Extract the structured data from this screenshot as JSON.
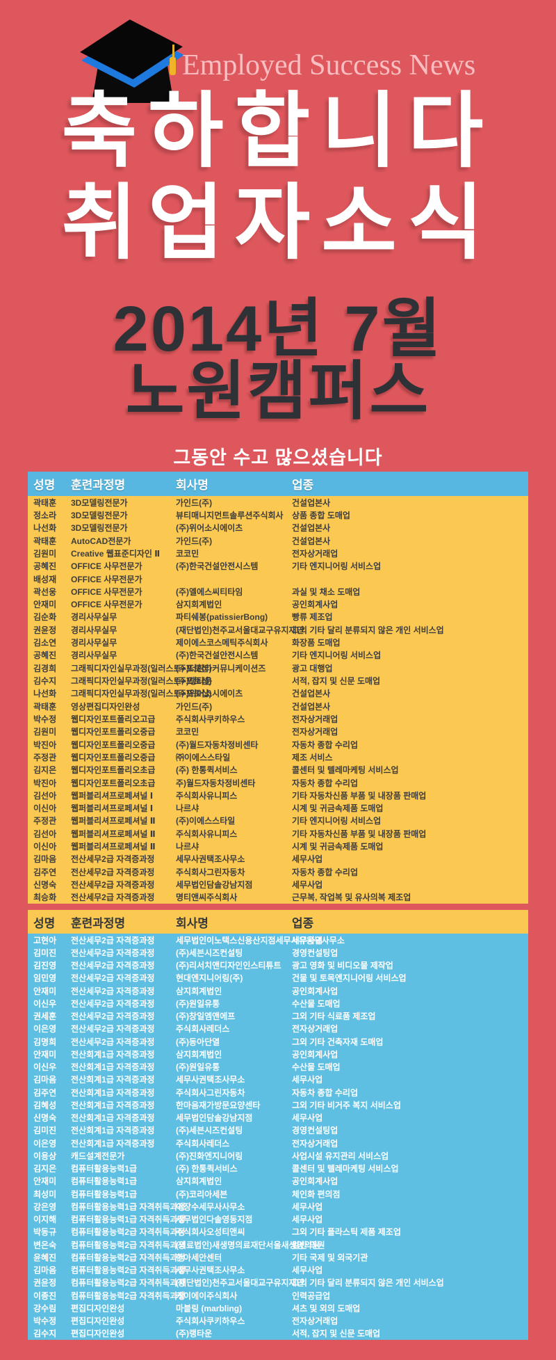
{
  "banner": {
    "brand": "Employed Success News"
  },
  "header": {
    "title_line1": "축하합니다",
    "title_line2": "취업자소식",
    "subtitle_line1": "2014년 7월",
    "subtitle_line2": "노원캠퍼스",
    "message": "그동안 수고 많으셨습니다"
  },
  "icons": {
    "graduation_cap": "graduation-cap-icon"
  },
  "colors": {
    "background": "#de575c",
    "table1_header_bg": "#57b7e0",
    "table1_body_bg": "#fbc851",
    "table2_header_bg": "#fbc851",
    "table2_body_bg": "#5fbfe3",
    "title_white": "#ffffff",
    "title_dark": "#2e3236",
    "cell_text_dark": "#3d3d3d",
    "cap_band_blue": "#1f7ae0",
    "tassel_gold": "#f0b428"
  },
  "table1": {
    "columns": [
      "성명",
      "훈련과정명",
      "회사명",
      "업종"
    ],
    "rows": [
      [
        "곽태훈",
        "3D모델링전문가",
        "가인드(주)",
        "건설업본사"
      ],
      [
        "정소라",
        "3D모델링전문가",
        "뷰티매니지먼트솔루션주식회사",
        "상품 종합 도매업"
      ],
      [
        "나선화",
        "3D모델링전문가",
        "(주)위어소시에이츠",
        "건설업본사"
      ],
      [
        "곽태훈",
        "AutoCAD전문가",
        "가인드(주)",
        "건설업본사"
      ],
      [
        "김원미",
        "Creative 웹표준디자인 Ⅱ",
        "코코민",
        "전자상거래업"
      ],
      [
        "공혜진",
        "OFFICE 사무전문가",
        "(주)한국건설안전시스템",
        "기타 엔지니어링 서비스업"
      ],
      [
        "배성재",
        "OFFICE 사무전문가",
        "",
        ""
      ],
      [
        "곽선웅",
        "OFFICE 사무전문가",
        "(주)엘에스씨티타임",
        "과실 및 채소 도매업"
      ],
      [
        "안재미",
        "OFFICE 사무전문가",
        "삼지회계법인",
        "공인회계사업"
      ],
      [
        "김순화",
        "경리사무실무",
        "파티쉐봉(patissierBong)",
        "빵류 제조업"
      ],
      [
        "권윤정",
        "경리사무실무",
        "(재단법인)천주교서울대교구유지재단",
        "그외 기타 달리 분류되지 않은 개인 서비스업"
      ],
      [
        "김소연",
        "경리사무실무",
        "제이에스코스메틱주식회사",
        "화장품 도매업"
      ],
      [
        "공혜진",
        "경리사무실무",
        "(주)한국건설안전시스템",
        "기타 엔지니어링 서비스업"
      ],
      [
        "김경희",
        "그래픽디자인실무과정(일러스트+포토샵)",
        "(주)더환타커뮤니케이션즈",
        "광고 대행업"
      ],
      [
        "김수지",
        "그래픽디자인실무과정(일러스트+포토샵)",
        "(주)랭타운",
        "서적, 잡지 및 신문 도매업"
      ],
      [
        "나선화",
        "그래픽디자인실무과정(일러스트+포토샵)",
        "(주)위어소시에이츠",
        "건설업본사"
      ],
      [
        "곽태훈",
        "영상편집디자인완성",
        "가인드(주)",
        "건설업본사"
      ],
      [
        "박수정",
        "웹디자인포트폴리오고급",
        "주식회사쿠키하우스",
        "전자상거래업"
      ],
      [
        "김원미",
        "웹디자인포트폴리오중급",
        "코코민",
        "전자상거래업"
      ],
      [
        "박진아",
        "웹디자인포트폴리오중급",
        "(주)월드자동차정비센타",
        "자동차 종합 수리업"
      ],
      [
        "주정관",
        "웹디자인포트폴리오중급",
        "㈜이에스스타일",
        "제조 서비스"
      ],
      [
        "김지은",
        "웹디자인포트폴리오초급",
        "(주) 한통퀵서비스",
        "콜센터 및 텔레마케팅 서비스업"
      ],
      [
        "박진아",
        "웹디자인포트폴리오초급",
        "주)월드자동차정비센타",
        "자동차 종합 수리업"
      ],
      [
        "김선아",
        "웹퍼블리셔프로페셔널 Ⅰ",
        "주식회사유니피스",
        "기타 자동차신품 부품 및 내장품 판매업"
      ],
      [
        "이신아",
        "웹퍼블리셔프로페셔널 Ⅰ",
        "나르샤",
        "시계 및 귀금속제품 도매업"
      ],
      [
        "주정관",
        "웹퍼블리셔프로페셔널 Ⅱ",
        "(주)이에스스타일",
        "기타 엔지니어링 서비스업"
      ],
      [
        "김선아",
        "웹퍼블리셔프로페셔널 Ⅱ",
        "주식회사유니피스",
        "기타 자동차신품 부품 및 내장품 판매업"
      ],
      [
        "이신아",
        "웹퍼블리셔프로페셔널 Ⅱ",
        "나르샤",
        "시계 및 귀금속제품 도매업"
      ],
      [
        "김마음",
        "전산세무2급 자격증과정",
        "세무사권택조사무소",
        "세무사업"
      ],
      [
        "김주연",
        "전산세무2급 자격증과정",
        "주식회사그린자동차",
        "자동차 종합 수리업"
      ],
      [
        "신명숙",
        "전산세무2급 자격증과정",
        "세무법인담솔강남지점",
        "세무사업"
      ],
      [
        "최승화",
        "전산세무2급 자격증과정",
        "명티앤씨주식회사",
        "근무복, 작업복 및 유사의복 제조업"
      ]
    ]
  },
  "table2": {
    "columns": [
      "성명",
      "훈련과정명",
      "회사명",
      "업종"
    ],
    "rows": [
      [
        "고현아",
        "전산세무2급 자격증과정",
        "세무법인이노택스신용산지점세무사유웅규사무소",
        "세무사업"
      ],
      [
        "김미진",
        "전산세무2급 자격증과정",
        "(주)세븐시즈컨설팅",
        "경영컨설팅업"
      ],
      [
        "김진영",
        "전산세무2급 자격증과정",
        "(주)리서치앤디자인인스티튜트",
        "광고 영화 및 비디오물 제작업"
      ],
      [
        "임민영",
        "전산세무2급 자격증과정",
        "현대엔지니어링(주)",
        "건물 및 토목엔지니어링 서비스업"
      ],
      [
        "안재미",
        "전산세무2급 자격증과정",
        "삼지회계법인",
        "공인회계사업"
      ],
      [
        "이신우",
        "전산세무2급 자격증과정",
        "(주)원일유통",
        "수산물 도매업"
      ],
      [
        "권세훈",
        "전산세무2급 자격증과정",
        "(주)창일엠앤에프",
        "그외 기타 식료품 제조업"
      ],
      [
        "이은영",
        "전산세무2급 자격증과정",
        "주식회사레더스",
        "전자상거래업"
      ],
      [
        "김명희",
        "전산세무2급 자격증과정",
        "(주)동아단열",
        "그외 기타 건축자재 도매업"
      ],
      [
        "안재미",
        "전산회계1급 자격증과정",
        "삼지회계법인",
        "공인회계사업"
      ],
      [
        "이신우",
        "전산회계1급 자격증과정",
        "(주)원일유통",
        "수산물 도매업"
      ],
      [
        "김마음",
        "전산회계1급 자격증과정",
        "세무사권택조사무소",
        "세무사업"
      ],
      [
        "김주연",
        "전산회계1급 자격증과정",
        "주식회사그린자동차",
        "자동차 종합 수리업"
      ],
      [
        "김혜성",
        "전산회계1급 자격증과정",
        "한마음재가방문요양센타",
        "그외 기타 비거주 복지 서비스업"
      ],
      [
        "신명숙",
        "전산회계1급 자격증과정",
        "세무법인담솔강남지점",
        "세무사업"
      ],
      [
        "김미진",
        "전산회계1급 자격증과정",
        "(주)세븐시즈컨설팅",
        "경영컨설팅업"
      ],
      [
        "이은영",
        "전산회계1급 자격증과정",
        "주식회사레더스",
        "전자상거래업"
      ],
      [
        "이용상",
        "캐드설계전문가",
        "(주)진화엔지니어링",
        "사업시설 유지관리 서비스업"
      ],
      [
        "김지은",
        "컴퓨터활용능력1급",
        "(주) 한통퀵서비스",
        "콜센터 및 텔레마케팅 서비스업"
      ],
      [
        "안재미",
        "컴퓨터활용능력1급",
        "삼지회계법인",
        "공인회계사업"
      ],
      [
        "최성미",
        "컴퓨터활용능력1급",
        "(주)코리아세븐",
        "체인화 편의점"
      ],
      [
        "강은영",
        "컴퓨터활용능력1급 자격취득과정",
        "이장수세무사사무소",
        "세무사업"
      ],
      [
        "이지해",
        "컴퓨터활용능력1급 자격취득과정",
        "세무법인다솔영동지점",
        "세무사업"
      ],
      [
        "박동규",
        "컴퓨터활용능력2급 자격취득과정",
        "주식회사오성티앤씨",
        "그외 기타 플라스틱 제품 제조업"
      ],
      [
        "변은숙",
        "컴퓨터활용능력2급 자격취득과정",
        "(의료법인)새생명의료재단서울새생명의원",
        "일반 의원"
      ],
      [
        "윤혜진",
        "컴퓨터활용능력2급 자격취득과정",
        "한아세안센터",
        "기타 국제 및 외국기관"
      ],
      [
        "김마음",
        "컴퓨터활용능력2급 자격취득과정",
        "세무사권택조사무소",
        "세무사업"
      ],
      [
        "권윤정",
        "컴퓨터활용능력2급 자격취득과정",
        "(재단법인)천주교서울대교구유지재단",
        "그외 기타 달리 분류되지 않은 개인 서비스업"
      ],
      [
        "이종진",
        "컴퓨터활용능력2급 자격취득과정",
        "케이에이주식회사",
        "인력공급업"
      ],
      [
        "강수림",
        "편집디자인완성",
        "마블링 (marbling)",
        "셔츠 및 외의 도매업"
      ],
      [
        "박수정",
        "편집디자인완성",
        "주식회사쿠키하우스",
        "전자상거래업"
      ],
      [
        "김수지",
        "편집디자인완성",
        "(주)랭타운",
        "서적, 잡지 및 신문 도매업"
      ]
    ]
  }
}
